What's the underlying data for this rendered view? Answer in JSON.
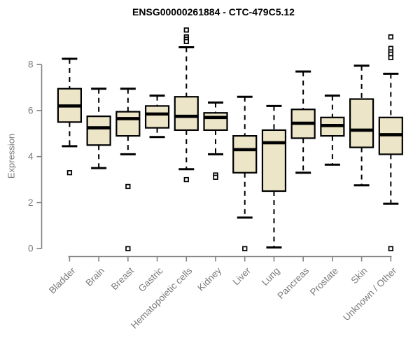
{
  "page": {
    "background": "#ffffff"
  },
  "chart_data": {
    "type": "box",
    "title": "ENSG00000261884 - CTC-479C5.12",
    "ylabel": "Expression",
    "xlabel": "",
    "ylim": [
      0,
      8
    ],
    "yticks": [
      0,
      2,
      4,
      6,
      8
    ],
    "grid": false,
    "legend": false,
    "categories": [
      "Bladder",
      "Brain",
      "Breast",
      "Gastric",
      "Hematopoietic cells",
      "Kidney",
      "Liver",
      "Lung",
      "Pancreas",
      "Prostate",
      "Skin",
      "Unknown / Other"
    ],
    "boxes": [
      {
        "category": "Bladder",
        "whisker_low": 4.45,
        "q1": 5.5,
        "median": 6.2,
        "q3": 6.95,
        "whisker_high": 8.25,
        "outliers": [
          3.3
        ]
      },
      {
        "category": "Brain",
        "whisker_low": 3.5,
        "q1": 4.5,
        "median": 5.25,
        "q3": 5.75,
        "whisker_high": 6.95,
        "outliers": []
      },
      {
        "category": "Breast",
        "whisker_low": 4.1,
        "q1": 4.9,
        "median": 5.65,
        "q3": 5.95,
        "whisker_high": 6.95,
        "outliers": [
          2.7,
          0.0
        ]
      },
      {
        "category": "Gastric",
        "whisker_low": 4.85,
        "q1": 5.25,
        "median": 5.85,
        "q3": 6.2,
        "whisker_high": 6.65,
        "outliers": []
      },
      {
        "category": "Hematopoietic cells",
        "whisker_low": 3.45,
        "q1": 5.15,
        "median": 5.75,
        "q3": 6.6,
        "whisker_high": 8.75,
        "outliers": [
          9.5,
          9.2,
          9.1,
          9.0,
          3.0
        ]
      },
      {
        "category": "Kidney",
        "whisker_low": 4.1,
        "q1": 5.15,
        "median": 5.7,
        "q3": 5.9,
        "whisker_high": 6.35,
        "outliers": [
          3.2,
          3.1
        ]
      },
      {
        "category": "Liver",
        "whisker_low": 1.35,
        "q1": 3.3,
        "median": 4.3,
        "q3": 4.9,
        "whisker_high": 6.6,
        "outliers": [
          0.0
        ]
      },
      {
        "category": "Lung",
        "whisker_low": 0.05,
        "q1": 2.5,
        "median": 4.6,
        "q3": 5.15,
        "whisker_high": 6.2,
        "outliers": []
      },
      {
        "category": "Pancreas",
        "whisker_low": 3.3,
        "q1": 4.8,
        "median": 5.45,
        "q3": 6.05,
        "whisker_high": 7.7,
        "outliers": []
      },
      {
        "category": "Prostate",
        "whisker_low": 3.65,
        "q1": 4.9,
        "median": 5.35,
        "q3": 5.7,
        "whisker_high": 6.65,
        "outliers": []
      },
      {
        "category": "Skin",
        "whisker_low": 2.75,
        "q1": 4.4,
        "median": 5.15,
        "q3": 6.5,
        "whisker_high": 7.95,
        "outliers": []
      },
      {
        "category": "Unknown / Other",
        "whisker_low": 1.95,
        "q1": 4.1,
        "median": 4.95,
        "q3": 5.7,
        "whisker_high": 7.6,
        "outliers": [
          9.2,
          8.7,
          8.55,
          8.45,
          8.3,
          0.0
        ]
      }
    ],
    "colors": {
      "box_fill": "#ece5c7",
      "box_stroke": "#000000",
      "median": "#000000",
      "whisker": "#000000",
      "outlier_stroke": "#000000",
      "outlier_fill": "#ffffff",
      "axis_line": "#828282",
      "tick_label": "#7a7a7a",
      "title": "#000000"
    }
  }
}
